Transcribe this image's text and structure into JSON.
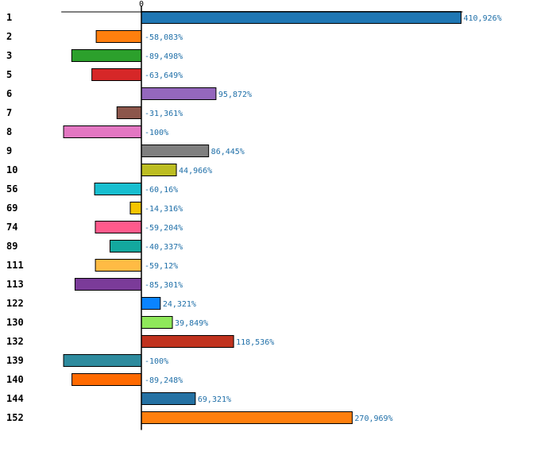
{
  "chart_data": {
    "type": "bar",
    "orientation": "horizontal",
    "title": "",
    "xlabel": "",
    "ylabel": "",
    "zero_tick_label": "0",
    "xlim": [
      -105,
      425
    ],
    "grid": false,
    "categories": [
      "1",
      "2",
      "3",
      "5",
      "6",
      "7",
      "8",
      "9",
      "10",
      "56",
      "69",
      "74",
      "89",
      "111",
      "113",
      "122",
      "130",
      "132",
      "139",
      "140",
      "144",
      "152"
    ],
    "values": [
      410.926,
      -58.083,
      -89.498,
      -63.649,
      95.872,
      -31.361,
      -100,
      86.445,
      44.966,
      -60.16,
      -14.316,
      -59.204,
      -40.337,
      -59.12,
      -85.301,
      24.321,
      39.849,
      118.536,
      -100,
      -89.248,
      69.321,
      270.969
    ],
    "labels": [
      "410,926%",
      "-58,083%",
      "-89,498%",
      "-63,649%",
      "95,872%",
      "-31,361%",
      "-100%",
      "86,445%",
      "44,966%",
      "-60,16%",
      "-14,316%",
      "-59,204%",
      "-40,337%",
      "-59,12%",
      "-85,301%",
      "24,321%",
      "39,849%",
      "118,536%",
      "-100%",
      "-89,248%",
      "69,321%",
      "270,969%"
    ],
    "colors": [
      "#1f77b4",
      "#ff7f0e",
      "#2ca02c",
      "#d62728",
      "#9467bd",
      "#8c564b",
      "#e377c2",
      "#7f7f7f",
      "#bcbd22",
      "#17becf",
      "#f5c400",
      "#ff5a8c",
      "#13a89e",
      "#ffbb44",
      "#7b3b99",
      "#0a84ff",
      "#8fe85a",
      "#c0321e",
      "#2e8b9e",
      "#ff6a00",
      "#2471a3",
      "#ff7f0e"
    ]
  }
}
